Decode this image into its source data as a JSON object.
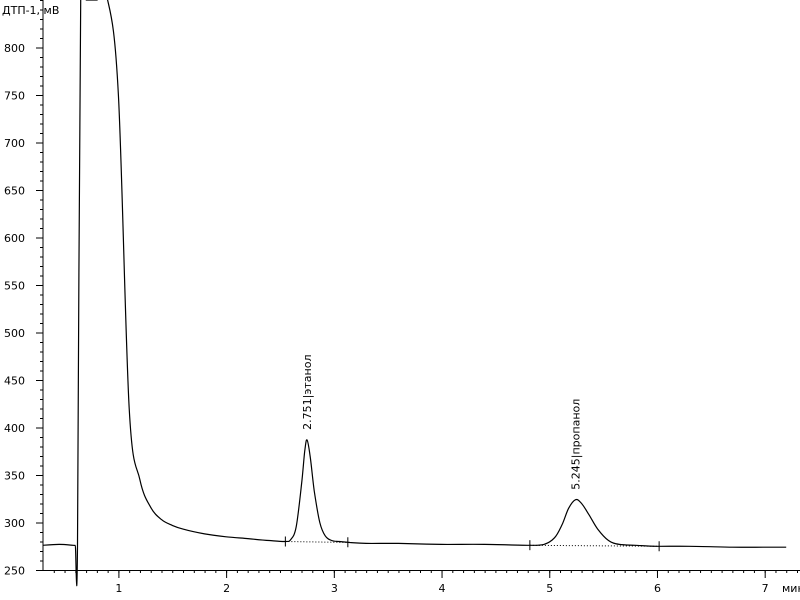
{
  "chart_data": {
    "type": "line",
    "ylabel": "ДТП-1, мВ",
    "xlabel": "мин",
    "ylim": [
      250,
      850
    ],
    "xlim": [
      0.3,
      7.3
    ],
    "x_ticks": [
      1,
      2,
      3,
      4,
      5,
      6,
      7
    ],
    "y_ticks": [
      250,
      300,
      350,
      400,
      450,
      500,
      550,
      600,
      650,
      700,
      750,
      800
    ],
    "x_tick_labels": [
      "1",
      "2",
      "3",
      "4",
      "5",
      "6",
      "7"
    ],
    "y_tick_labels": [
      "250",
      "300",
      "350",
      "400",
      "450",
      "500",
      "550",
      "600",
      "650",
      "700",
      "750",
      "800"
    ],
    "grid": false,
    "series": [
      {
        "color": "#000000",
        "x": [
          0.3,
          0.45,
          0.58,
          0.6,
          0.62,
          0.65,
          0.7,
          0.75,
          0.8,
          0.9,
          1.0,
          1.1,
          1.2,
          1.3,
          1.4,
          1.5,
          1.6,
          1.8,
          2.0,
          2.2,
          2.4,
          2.55,
          2.6,
          2.65,
          2.7,
          2.73,
          2.751,
          2.78,
          2.82,
          2.87,
          2.92,
          2.98,
          3.05,
          3.15,
          3.3,
          3.6,
          4.0,
          4.4,
          4.8,
          4.95,
          5.05,
          5.12,
          5.18,
          5.245,
          5.3,
          5.37,
          5.45,
          5.55,
          5.65,
          5.8,
          6.0,
          6.3,
          6.7,
          7.0,
          7.2
        ],
        "y": [
          276,
          277,
          276,
          276,
          276,
          850,
          850,
          850,
          850,
          850,
          750,
          420,
          345,
          316,
          303,
          297,
          293,
          288,
          285,
          283,
          281,
          280,
          282,
          295,
          340,
          375,
          387,
          370,
          332,
          300,
          286,
          281,
          280,
          279,
          278,
          278,
          277,
          277,
          276,
          277,
          284,
          298,
          315,
          324,
          320,
          308,
          293,
          281,
          277,
          276,
          275,
          275,
          274,
          274,
          274
        ]
      }
    ],
    "peaks": [
      {
        "time": 2.751,
        "height": 387,
        "label": "2.751|этанол"
      },
      {
        "time": 5.245,
        "height": 324,
        "label": "5.245|пропанол"
      }
    ],
    "integration_marks": [
      2.55,
      3.13,
      4.82,
      6.02
    ],
    "baselines": [
      {
        "x": [
          2.55,
          3.13
        ],
        "y": [
          280,
          279
        ]
      },
      {
        "x": [
          4.82,
          6.02
        ],
        "y": [
          276,
          275
        ]
      }
    ]
  }
}
